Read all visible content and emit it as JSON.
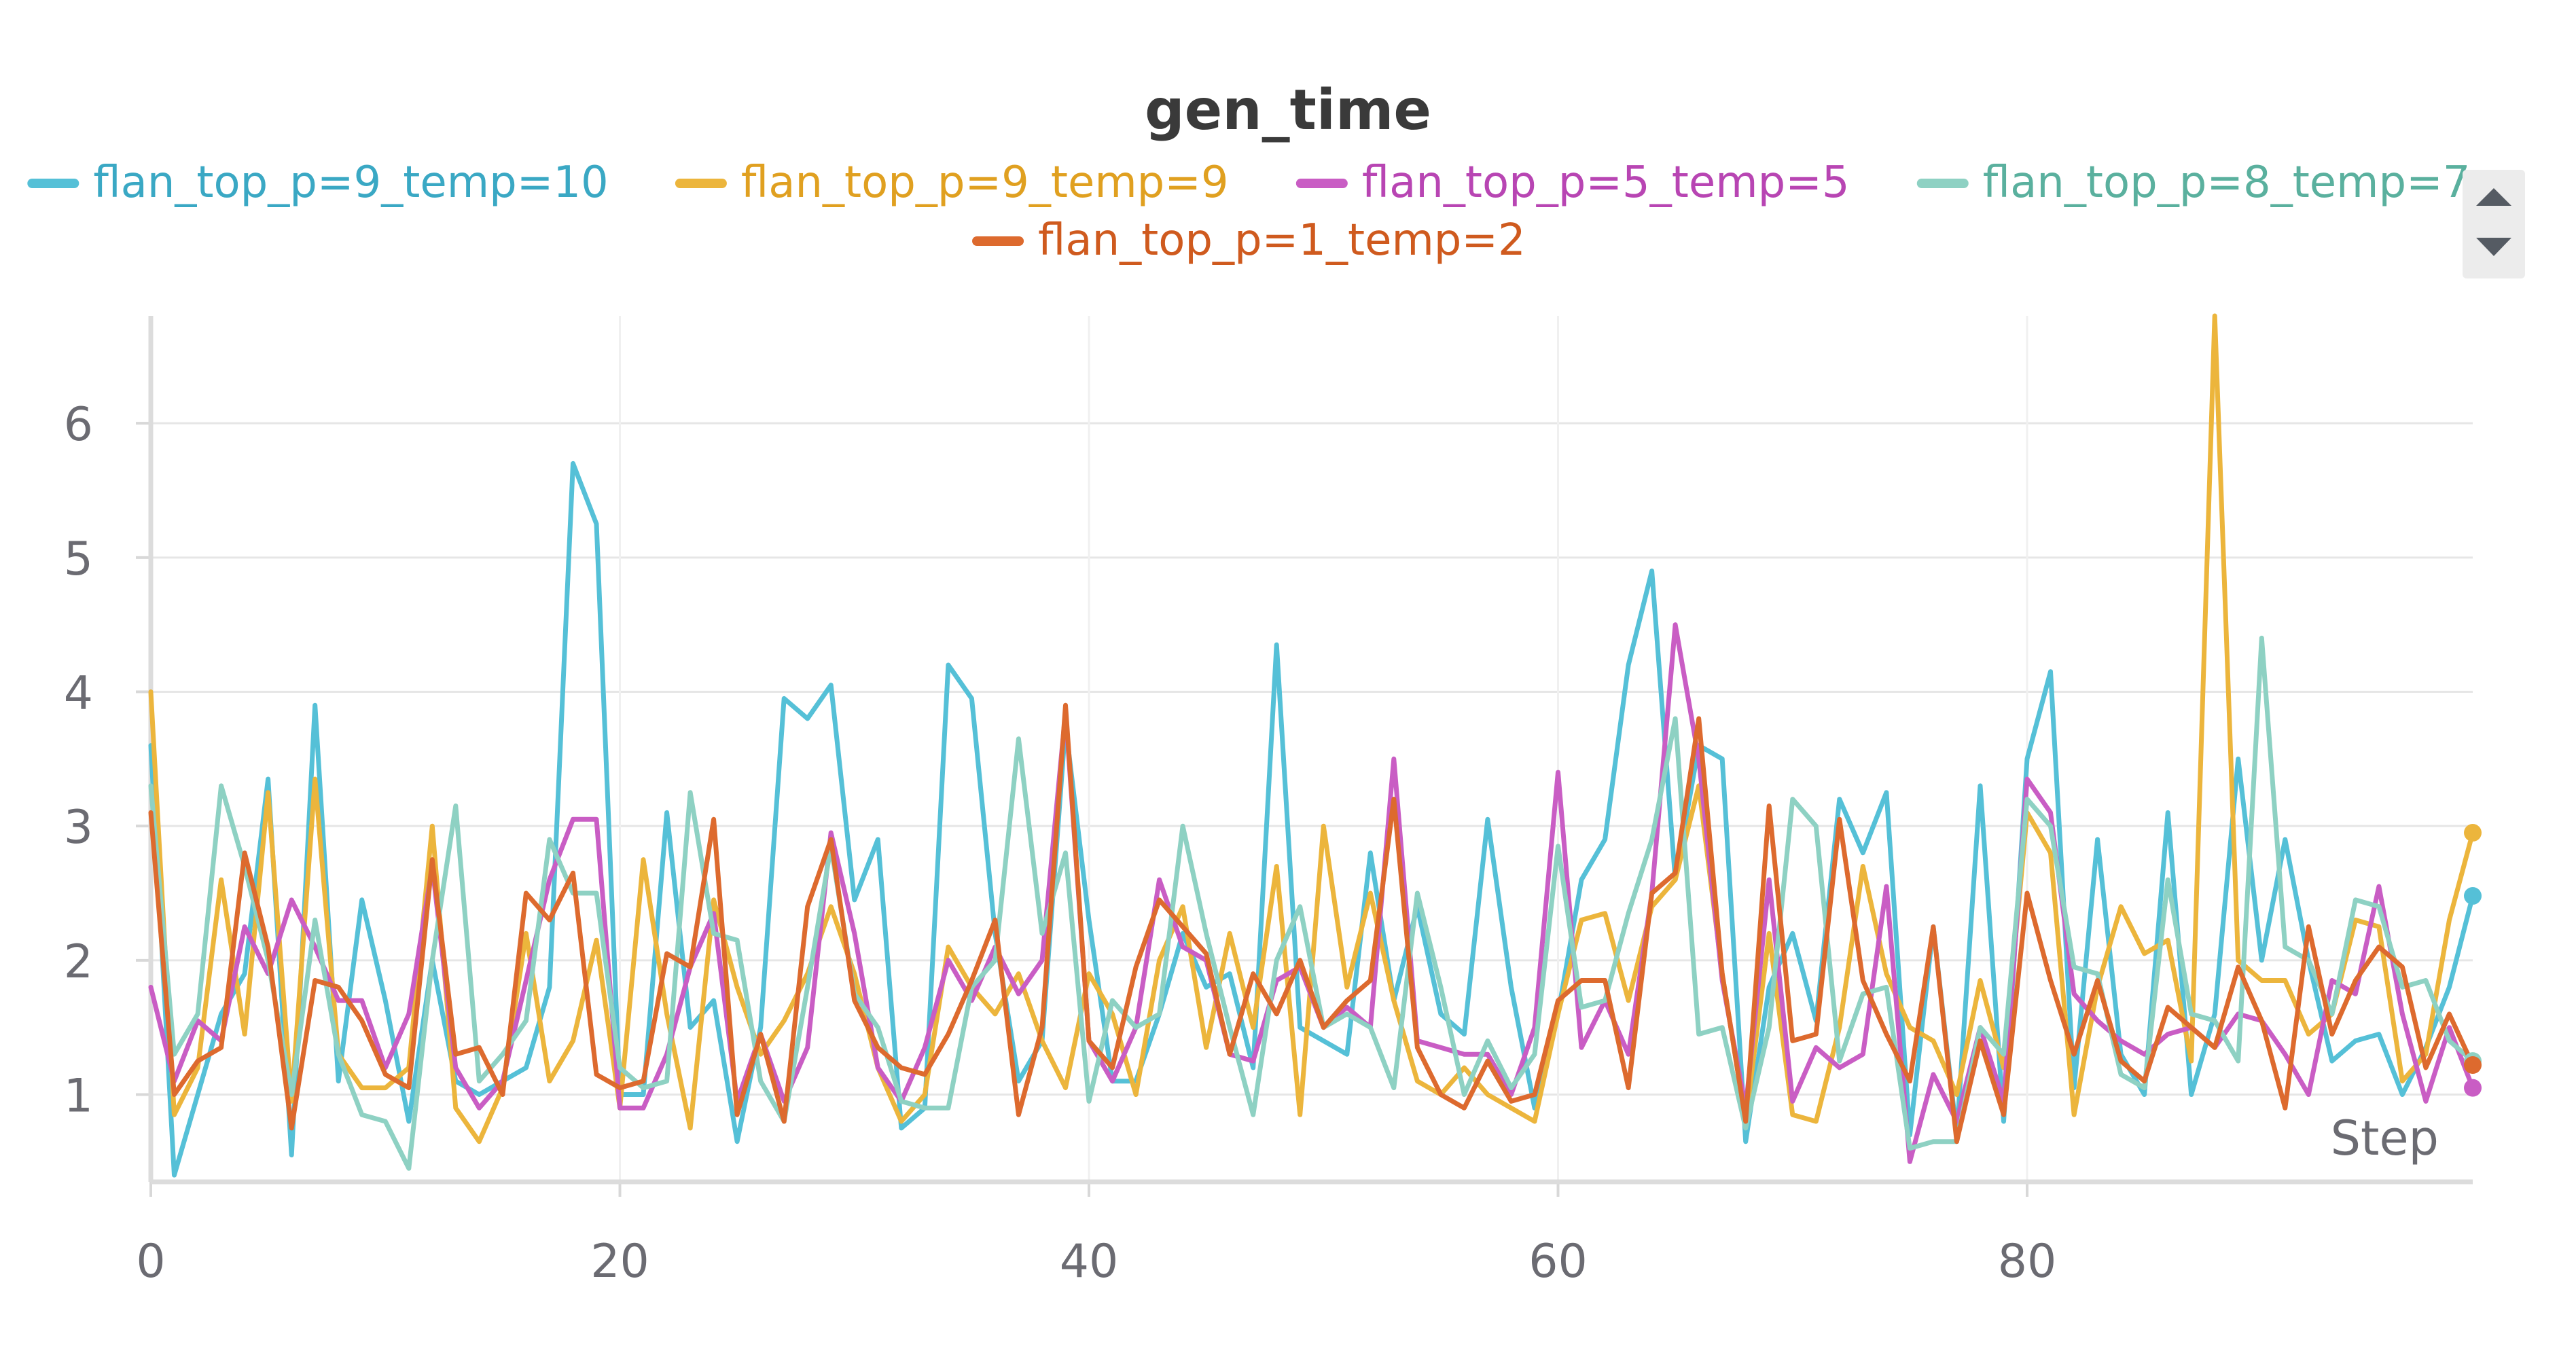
{
  "chart_data": {
    "type": "line",
    "title": "gen_time",
    "xlabel": "Step",
    "ylabel": "",
    "xlim": [
      0,
      99
    ],
    "ylim": [
      0.35,
      6.8
    ],
    "x_ticks": [
      0,
      20,
      40,
      60,
      80
    ],
    "y_ticks": [
      1,
      2,
      3,
      4,
      5,
      6
    ],
    "grid": true,
    "legend_position": "top",
    "series": [
      {
        "name": "flan_top_p=9_temp=10",
        "color": "#55c0d7",
        "text_color": "#3aa8c4",
        "x": [
          0,
          1,
          2,
          3,
          4,
          5,
          6,
          7,
          8,
          9,
          10,
          11,
          12,
          13,
          14,
          15,
          16,
          17,
          18,
          19,
          20,
          21,
          22,
          23,
          24,
          25,
          26,
          27,
          28,
          29,
          30,
          31,
          32,
          33,
          34,
          35,
          36,
          37,
          38,
          39,
          40,
          41,
          42,
          43,
          44,
          45,
          46,
          47,
          48,
          49,
          50,
          51,
          52,
          53,
          54,
          55,
          56,
          57,
          58,
          59,
          60,
          61,
          62,
          63,
          64,
          65,
          66,
          67,
          68,
          69,
          70,
          71,
          72,
          73,
          74,
          75,
          76,
          77,
          78,
          79,
          80,
          81,
          82,
          83,
          84,
          85,
          86,
          87,
          88,
          89,
          90,
          91,
          92,
          93,
          94,
          95,
          96,
          97,
          98,
          99
        ],
        "y": [
          3.6,
          0.4,
          1.0,
          1.6,
          1.9,
          3.35,
          0.55,
          3.9,
          1.1,
          2.45,
          1.7,
          0.8,
          2.0,
          1.1,
          1.0,
          1.1,
          1.2,
          1.8,
          5.7,
          5.25,
          1.0,
          1.0,
          3.1,
          1.5,
          1.7,
          0.65,
          1.5,
          3.95,
          3.8,
          4.05,
          2.45,
          2.9,
          0.75,
          0.9,
          4.2,
          3.95,
          2.2,
          1.1,
          1.4,
          3.75,
          2.3,
          1.1,
          1.1,
          1.6,
          2.2,
          1.8,
          1.9,
          1.2,
          4.35,
          1.5,
          1.4,
          1.3,
          2.8,
          1.7,
          2.4,
          1.6,
          1.45,
          3.05,
          1.8,
          0.9,
          1.6,
          2.6,
          2.9,
          4.2,
          4.9,
          2.6,
          3.6,
          3.5,
          0.65,
          1.8,
          2.2,
          1.55,
          3.2,
          2.8,
          3.25,
          0.7,
          2.25,
          0.7,
          3.3,
          0.8,
          3.5,
          4.15,
          1.05,
          2.9,
          1.3,
          1.0,
          3.1,
          1.0,
          1.6,
          3.5,
          2.0,
          2.9,
          2.0,
          1.25,
          1.4,
          1.45,
          1.0,
          1.35,
          1.8,
          2.48
        ]
      },
      {
        "name": "flan_top_p=9_temp=9",
        "color": "#ecb53c",
        "text_color": "#e0a020",
        "x": [
          0,
          1,
          2,
          3,
          4,
          5,
          6,
          7,
          8,
          9,
          10,
          11,
          12,
          13,
          14,
          15,
          16,
          17,
          18,
          19,
          20,
          21,
          22,
          23,
          24,
          25,
          26,
          27,
          28,
          29,
          30,
          31,
          32,
          33,
          34,
          35,
          36,
          37,
          38,
          39,
          40,
          41,
          42,
          43,
          44,
          45,
          46,
          47,
          48,
          49,
          50,
          51,
          52,
          53,
          54,
          55,
          56,
          57,
          58,
          59,
          60,
          61,
          62,
          63,
          64,
          65,
          66,
          67,
          68,
          69,
          70,
          71,
          72,
          73,
          74,
          75,
          76,
          77,
          78,
          79,
          80,
          81,
          82,
          83,
          84,
          85,
          86,
          87,
          88,
          89,
          90,
          91,
          92,
          93,
          94,
          95,
          96,
          97,
          98,
          99
        ],
        "y": [
          4.0,
          0.85,
          1.2,
          2.6,
          1.45,
          3.25,
          0.95,
          3.35,
          1.3,
          1.05,
          1.05,
          1.2,
          3.0,
          0.9,
          0.65,
          1.05,
          2.2,
          1.1,
          1.4,
          2.15,
          0.9,
          2.75,
          1.6,
          0.75,
          2.45,
          1.8,
          1.3,
          1.55,
          1.9,
          2.4,
          1.9,
          1.2,
          0.8,
          1.0,
          2.1,
          1.8,
          1.6,
          1.9,
          1.4,
          1.05,
          1.9,
          1.6,
          1.0,
          2.0,
          2.4,
          1.35,
          2.2,
          1.5,
          2.7,
          0.85,
          3.0,
          1.8,
          2.5,
          1.7,
          1.1,
          1.0,
          1.2,
          1.0,
          0.9,
          0.8,
          1.6,
          2.3,
          2.35,
          1.7,
          2.4,
          2.6,
          3.3,
          1.9,
          0.8,
          2.2,
          0.85,
          0.8,
          1.5,
          2.7,
          1.9,
          1.5,
          1.4,
          1.0,
          1.85,
          1.2,
          3.1,
          2.8,
          0.85,
          1.8,
          2.4,
          2.05,
          2.15,
          1.25,
          6.8,
          2.0,
          1.85,
          1.85,
          1.45,
          1.6,
          2.3,
          2.25,
          1.1,
          1.3,
          2.3,
          2.95
        ]
      },
      {
        "name": "flan_top_p=5_temp=5",
        "color": "#c95dc4",
        "text_color": "#b845b3",
        "x": [
          0,
          1,
          2,
          3,
          4,
          5,
          6,
          7,
          8,
          9,
          10,
          11,
          12,
          13,
          14,
          15,
          16,
          17,
          18,
          19,
          20,
          21,
          22,
          23,
          24,
          25,
          26,
          27,
          28,
          29,
          30,
          31,
          32,
          33,
          34,
          35,
          36,
          37,
          38,
          39,
          40,
          41,
          42,
          43,
          44,
          45,
          46,
          47,
          48,
          49,
          50,
          51,
          52,
          53,
          54,
          55,
          56,
          57,
          58,
          59,
          60,
          61,
          62,
          63,
          64,
          65,
          66,
          67,
          68,
          69,
          70,
          71,
          72,
          73,
          74,
          75,
          76,
          77,
          78,
          79,
          80,
          81,
          82,
          83,
          84,
          85,
          86,
          87,
          88,
          89,
          90,
          91,
          92,
          93,
          94,
          95,
          96,
          97,
          98,
          99
        ],
        "y": [
          1.8,
          1.1,
          1.55,
          1.4,
          2.25,
          1.9,
          2.45,
          2.1,
          1.7,
          1.7,
          1.2,
          1.6,
          2.7,
          1.2,
          0.9,
          1.1,
          1.85,
          2.6,
          3.05,
          3.05,
          0.9,
          0.9,
          1.3,
          1.95,
          2.35,
          0.95,
          1.45,
          0.95,
          1.35,
          2.95,
          2.2,
          1.2,
          0.95,
          1.35,
          2.0,
          1.7,
          2.1,
          1.75,
          2.0,
          3.85,
          1.4,
          1.1,
          1.5,
          2.6,
          2.1,
          2.0,
          1.3,
          1.25,
          1.85,
          1.95,
          1.5,
          1.65,
          1.5,
          3.5,
          1.4,
          1.35,
          1.3,
          1.3,
          1.0,
          1.5,
          3.4,
          1.35,
          1.7,
          1.3,
          2.5,
          4.5,
          3.5,
          1.85,
          0.9,
          2.6,
          0.95,
          1.35,
          1.2,
          1.3,
          2.55,
          0.5,
          1.15,
          0.8,
          1.5,
          0.95,
          3.35,
          3.1,
          1.75,
          1.55,
          1.4,
          1.3,
          1.45,
          1.5,
          1.35,
          1.6,
          1.55,
          1.3,
          1.0,
          1.85,
          1.75,
          2.55,
          1.6,
          0.95,
          1.5,
          1.05
        ]
      },
      {
        "name": "flan_top_p=8_temp=7",
        "color": "#8ed1c3",
        "text_color": "#5ab09e",
        "x": [
          0,
          1,
          2,
          3,
          4,
          5,
          6,
          7,
          8,
          9,
          10,
          11,
          12,
          13,
          14,
          15,
          16,
          17,
          18,
          19,
          20,
          21,
          22,
          23,
          24,
          25,
          26,
          27,
          28,
          29,
          30,
          31,
          32,
          33,
          34,
          35,
          36,
          37,
          38,
          39,
          40,
          41,
          42,
          43,
          44,
          45,
          46,
          47,
          48,
          49,
          50,
          51,
          52,
          53,
          54,
          55,
          56,
          57,
          58,
          59,
          60,
          61,
          62,
          63,
          64,
          65,
          66,
          67,
          68,
          69,
          70,
          71,
          72,
          73,
          74,
          75,
          76,
          77,
          78,
          79,
          80,
          81,
          82,
          83,
          84,
          85,
          86,
          87,
          88,
          89,
          90,
          91,
          92,
          93,
          94,
          95,
          96,
          97,
          98,
          99
        ],
        "y": [
          3.3,
          1.3,
          1.6,
          3.3,
          2.7,
          2.0,
          1.0,
          2.3,
          1.3,
          0.85,
          0.8,
          0.45,
          2.0,
          3.15,
          1.1,
          1.3,
          1.55,
          2.9,
          2.5,
          2.5,
          1.2,
          1.05,
          1.1,
          3.25,
          2.2,
          2.15,
          1.1,
          0.8,
          1.8,
          2.85,
          1.75,
          1.5,
          0.95,
          0.9,
          0.9,
          1.8,
          2.0,
          3.65,
          2.2,
          2.8,
          0.95,
          1.7,
          1.5,
          1.6,
          3.0,
          2.2,
          1.5,
          0.85,
          2.0,
          2.4,
          1.5,
          1.6,
          1.5,
          1.05,
          2.5,
          1.8,
          1.0,
          1.4,
          1.05,
          1.3,
          2.85,
          1.65,
          1.7,
          2.35,
          2.9,
          3.8,
          1.45,
          1.5,
          0.75,
          1.5,
          3.2,
          3.0,
          1.25,
          1.75,
          1.8,
          0.6,
          0.65,
          0.65,
          1.5,
          1.3,
          3.2,
          3.0,
          1.95,
          1.9,
          1.15,
          1.05,
          2.6,
          1.6,
          1.55,
          1.25,
          4.4,
          2.1,
          2.0,
          1.6,
          2.45,
          2.4,
          1.8,
          1.85,
          1.4,
          1.25
        ]
      },
      {
        "name": "flan_top_p=1_temp=2",
        "color": "#dd6a2e",
        "text_color": "#cf5a1e",
        "x": [
          0,
          1,
          2,
          3,
          4,
          5,
          6,
          7,
          8,
          9,
          10,
          11,
          12,
          13,
          14,
          15,
          16,
          17,
          18,
          19,
          20,
          21,
          22,
          23,
          24,
          25,
          26,
          27,
          28,
          29,
          30,
          31,
          32,
          33,
          34,
          35,
          36,
          37,
          38,
          39,
          40,
          41,
          42,
          43,
          44,
          45,
          46,
          47,
          48,
          49,
          50,
          51,
          52,
          53,
          54,
          55,
          56,
          57,
          58,
          59,
          60,
          61,
          62,
          63,
          64,
          65,
          66,
          67,
          68,
          69,
          70,
          71,
          72,
          73,
          74,
          75,
          76,
          77,
          78,
          79,
          80,
          81,
          82,
          83,
          84,
          85,
          86,
          87,
          88,
          89,
          90,
          91,
          92,
          93,
          94,
          95,
          96,
          97,
          98,
          99
        ],
        "y": [
          3.1,
          1.0,
          1.25,
          1.35,
          2.8,
          2.1,
          0.75,
          1.85,
          1.8,
          1.55,
          1.15,
          1.05,
          2.75,
          1.3,
          1.35,
          1.0,
          2.5,
          2.3,
          2.65,
          1.15,
          1.05,
          1.1,
          2.05,
          1.95,
          3.05,
          0.85,
          1.45,
          0.8,
          2.4,
          2.9,
          1.7,
          1.35,
          1.2,
          1.15,
          1.45,
          1.85,
          2.3,
          0.85,
          1.5,
          3.9,
          1.4,
          1.2,
          1.95,
          2.45,
          2.25,
          2.05,
          1.3,
          1.9,
          1.6,
          2.0,
          1.5,
          1.7,
          1.85,
          3.2,
          1.35,
          1.0,
          0.9,
          1.25,
          0.95,
          1.0,
          1.7,
          1.85,
          1.85,
          1.05,
          2.5,
          2.65,
          3.8,
          1.9,
          0.8,
          3.15,
          1.4,
          1.45,
          3.05,
          1.85,
          1.45,
          1.1,
          2.25,
          0.65,
          1.4,
          0.85,
          2.5,
          1.85,
          1.3,
          1.85,
          1.25,
          1.1,
          1.65,
          1.5,
          1.35,
          1.95,
          1.55,
          0.9,
          2.25,
          1.45,
          1.85,
          2.1,
          1.95,
          1.2,
          1.6,
          1.22
        ]
      }
    ]
  }
}
